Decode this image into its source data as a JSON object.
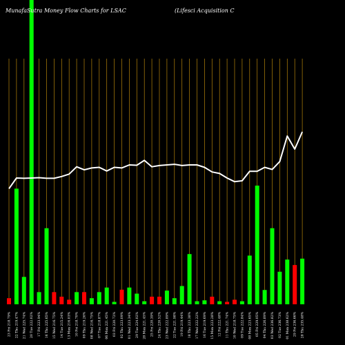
{
  "chart_data": {
    "type": "bar",
    "title_left": "MunafaSutra  Money Flow  Charts for LSAC",
    "title_right": "(Lifesci   Acquisition   C",
    "ylim": [
      0,
      100
    ],
    "grid": "vertical",
    "colors": {
      "up": "#00ff00",
      "down": "#ff0000",
      "line": "#ffffff",
      "grid": "#b8860b",
      "background": "#000000"
    },
    "x": [
      "23 Fri 218.79%",
      "22 Thu 219.47%",
      "21 Wed 225.74%",
      "20 Tue 222.02%",
      "17 Fri 223.94%",
      "16 Thu 225.65%",
      "15 Wed 216.75%",
      "14 Tue 215.24%",
      "13 Mon 216.03%",
      "10 Fri 218.70%",
      "09 Thu 219.26%",
      "08 Wed 216.75%",
      "07 Tue 218.87%",
      "06 Mon 221.45%",
      "03 Fri 220.72%",
      "02 Thu 223.09%",
      "01 Wed 223.34%",
      "29 Tue 224.02%",
      "28 Mon 221.45%",
      "25 Fri 220.39%",
      "24 Thu 220.52%",
      "23 Wed 222.89%",
      "22 Tue 221.98%",
      "19 Fri 219.44%",
      "18 Thu 223.38%",
      "17 Wed 222.22%",
      "16 Tue 219.69%",
      "15 Mon 223.28%",
      "12 Fri 222.48%",
      "11 Thu 221.74%",
      "10 Wed 218.75%",
      "09 Tue 222.84%",
      "08 Mon 223.65%",
      "05 Fri 229.05%",
      "04 Thu 226.89%",
      "03 Wed 236.82%",
      "02 Tue 236.73%",
      "01 Mon 238.62%",
      "29 Fri 236.66%",
      "28 Thu 235.48%"
    ],
    "values": [
      2,
      38,
      9,
      100,
      4,
      25,
      4,
      2.5,
      1.5,
      4,
      4,
      2,
      4,
      5.5,
      0.8,
      4.8,
      5.5,
      3.5,
      1,
      2.5,
      2.5,
      4.5,
      2,
      6,
      16.5,
      1,
      1.3,
      2.5,
      1,
      0.8,
      1.5,
      1,
      16,
      39,
      4.7,
      25,
      10.7,
      14.7,
      12.9,
      15
    ],
    "direction": [
      "down",
      "up",
      "up",
      "up",
      "up",
      "up",
      "down",
      "down",
      "down",
      "up",
      "down",
      "up",
      "up",
      "up",
      "up",
      "down",
      "up",
      "up",
      "up",
      "down",
      "down",
      "up",
      "up",
      "up",
      "up",
      "up",
      "up",
      "down",
      "up",
      "down",
      "down",
      "up",
      "up",
      "up",
      "up",
      "up",
      "up",
      "up",
      "down",
      "up"
    ],
    "line_values": [
      38,
      41.5,
      41.4,
      41.5,
      41.6,
      41.4,
      41.4,
      42,
      42.8,
      45.2,
      44.2,
      44.8,
      45,
      43.8,
      45,
      44.8,
      45.8,
      45.7,
      47.3,
      45.2,
      45.6,
      45.8,
      46,
      45.6,
      45.8,
      45.8,
      45,
      43.5,
      43,
      41.5,
      40.3,
      40.6,
      43.7,
      43.7,
      45,
      44.3,
      46.9,
      55.3,
      51,
      56.7
    ]
  }
}
